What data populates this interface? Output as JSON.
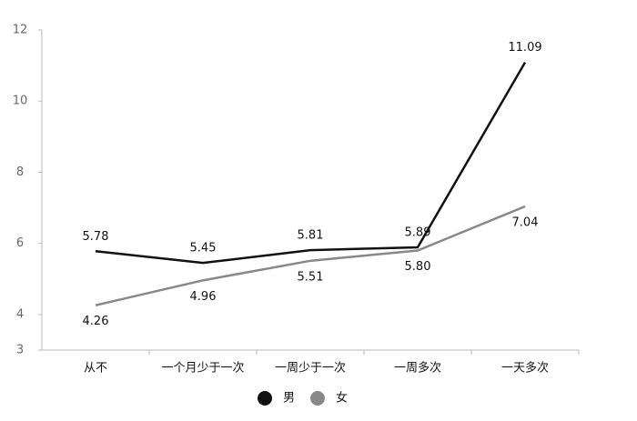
{
  "chart_data": {
    "type": "line",
    "categories": [
      "从不",
      "一个月少于一次",
      "一周少于一次",
      "一周多次",
      "一天多次"
    ],
    "series": [
      {
        "name": "男",
        "color": "#111111",
        "values": [
          5.78,
          5.45,
          5.81,
          5.89,
          11.09
        ],
        "value_labels": [
          "5.78",
          "5.45",
          "5.81",
          "5.89",
          "11.09"
        ]
      },
      {
        "name": "女",
        "color": "#888888",
        "values": [
          4.26,
          4.96,
          5.51,
          5.8,
          7.04
        ],
        "value_labels": [
          "4.26",
          "4.96",
          "5.51",
          "5.80",
          "7.04"
        ]
      }
    ],
    "ylim": [
      3,
      12
    ],
    "yticks": [
      3,
      4,
      6,
      8,
      10,
      12
    ],
    "grid": false,
    "legend": "bottom"
  }
}
